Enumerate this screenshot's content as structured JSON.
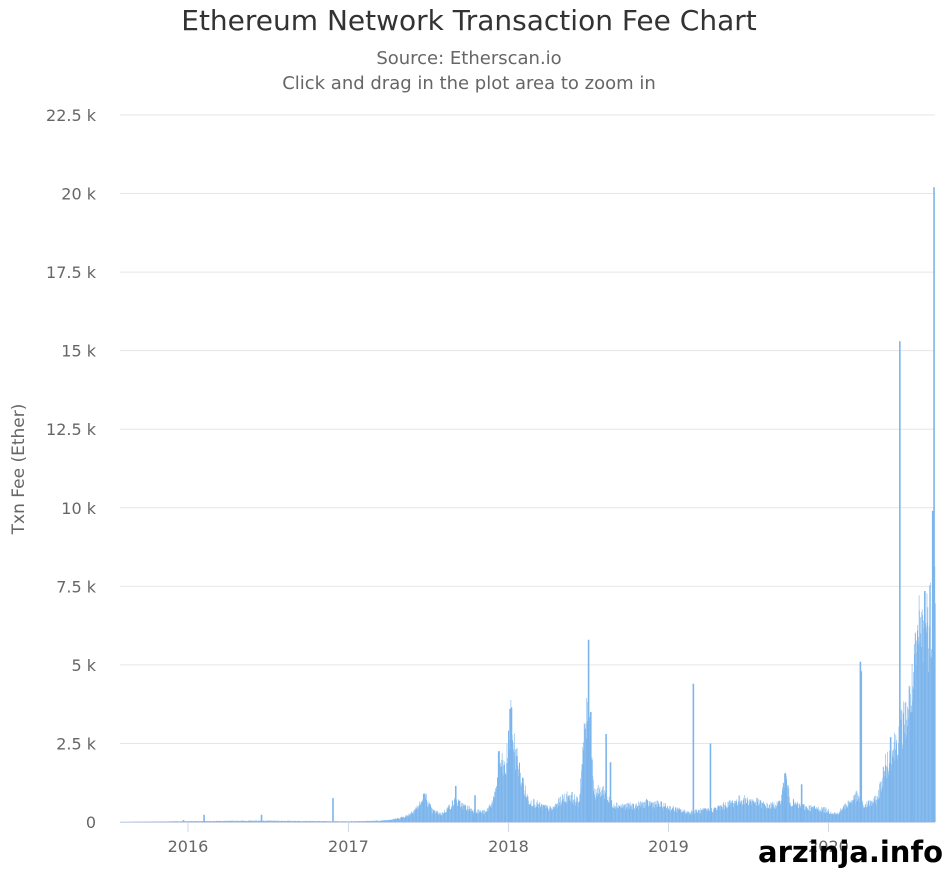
{
  "colors": {
    "bar": "#7cb5ec",
    "grid": "#e6e6e6",
    "text": "#666666",
    "title": "#333333"
  },
  "chart_data": {
    "type": "bar",
    "title": "Ethereum Network Transaction Fee Chart",
    "subtitle_lines": [
      "Source: Etherscan.io",
      "Click and drag in the plot area to zoom in"
    ],
    "xlabel": "",
    "ylabel": "Txn Fee (Ether)",
    "ylim": [
      0,
      22500
    ],
    "y_ticks": [
      {
        "value": 0,
        "label": "0"
      },
      {
        "value": 2500,
        "label": "2.5 k"
      },
      {
        "value": 5000,
        "label": "5 k"
      },
      {
        "value": 7500,
        "label": "7.5 k"
      },
      {
        "value": 10000,
        "label": "10 k"
      },
      {
        "value": 12500,
        "label": "12.5 k"
      },
      {
        "value": 15000,
        "label": "15 k"
      },
      {
        "value": 17500,
        "label": "17.5 k"
      },
      {
        "value": 20000,
        "label": "20 k"
      },
      {
        "value": 22500,
        "label": "22.5 k"
      }
    ],
    "xlim": [
      "2015-07-30",
      "2020-08-31"
    ],
    "x_ticks": [
      {
        "value": "2016-01-01",
        "label": "2016"
      },
      {
        "value": "2017-01-01",
        "label": "2017"
      },
      {
        "value": "2018-01-01",
        "label": "2018"
      },
      {
        "value": "2019-01-01",
        "label": "2019"
      },
      {
        "value": "2020-01-01",
        "label": "2020"
      }
    ],
    "grid": true,
    "legend": "none",
    "series_name": "",
    "profile": [
      [
        "2015-07-30",
        5
      ],
      [
        "2015-12-01",
        20
      ],
      [
        "2016-03-01",
        30
      ],
      [
        "2016-06-01",
        40
      ],
      [
        "2016-10-01",
        30
      ],
      [
        "2017-01-01",
        20
      ],
      [
        "2017-03-15",
        40
      ],
      [
        "2017-04-20",
        100
      ],
      [
        "2017-05-15",
        200
      ],
      [
        "2017-06-10",
        500
      ],
      [
        "2017-06-25",
        800
      ],
      [
        "2017-07-10",
        350
      ],
      [
        "2017-08-01",
        250
      ],
      [
        "2017-09-01",
        650
      ],
      [
        "2017-09-20",
        500
      ],
      [
        "2017-10-15",
        350
      ],
      [
        "2017-11-10",
        300
      ],
      [
        "2017-12-01",
        800
      ],
      [
        "2017-12-10",
        1900
      ],
      [
        "2017-12-25",
        1600
      ],
      [
        "2018-01-05",
        3200
      ],
      [
        "2018-01-15",
        2300
      ],
      [
        "2018-02-01",
        1200
      ],
      [
        "2018-02-15",
        700
      ],
      [
        "2018-03-15",
        500
      ],
      [
        "2018-04-10",
        400
      ],
      [
        "2018-05-01",
        700
      ],
      [
        "2018-05-20",
        850
      ],
      [
        "2018-06-10",
        600
      ],
      [
        "2018-06-25",
        3100
      ],
      [
        "2018-07-05",
        3300
      ],
      [
        "2018-07-15",
        900
      ],
      [
        "2018-08-05",
        1000
      ],
      [
        "2018-08-20",
        600
      ],
      [
        "2018-09-15",
        500
      ],
      [
        "2018-10-15",
        500
      ],
      [
        "2018-11-15",
        600
      ],
      [
        "2018-12-10",
        550
      ],
      [
        "2019-01-15",
        400
      ],
      [
        "2019-02-15",
        300
      ],
      [
        "2019-03-15",
        350
      ],
      [
        "2019-04-15",
        400
      ],
      [
        "2019-05-15",
        550
      ],
      [
        "2019-06-15",
        700
      ],
      [
        "2019-07-15",
        650
      ],
      [
        "2019-08-15",
        500
      ],
      [
        "2019-09-10",
        550
      ],
      [
        "2019-09-25",
        1400
      ],
      [
        "2019-10-05",
        650
      ],
      [
        "2019-10-25",
        500
      ],
      [
        "2019-11-20",
        450
      ],
      [
        "2019-12-20",
        400
      ],
      [
        "2020-01-20",
        250
      ],
      [
        "2020-02-15",
        600
      ],
      [
        "2020-03-05",
        800
      ],
      [
        "2020-03-20",
        500
      ],
      [
        "2020-04-20",
        700
      ],
      [
        "2020-05-10",
        1800
      ],
      [
        "2020-05-25",
        2200
      ],
      [
        "2020-06-10",
        2800
      ],
      [
        "2020-06-25",
        3300
      ],
      [
        "2020-07-10",
        4200
      ],
      [
        "2020-07-25",
        5900
      ],
      [
        "2020-08-10",
        6200
      ],
      [
        "2020-08-20",
        6500
      ],
      [
        "2020-08-31",
        7300
      ]
    ],
    "spikes": [
      {
        "date": "2015-12-20",
        "value": 60
      },
      {
        "date": "2016-02-05",
        "value": 230
      },
      {
        "date": "2016-06-15",
        "value": 230
      },
      {
        "date": "2016-11-25",
        "value": 760
      },
      {
        "date": "2017-06-20",
        "value": 900
      },
      {
        "date": "2017-09-01",
        "value": 1150
      },
      {
        "date": "2017-10-15",
        "value": 850
      },
      {
        "date": "2017-12-08",
        "value": 2250
      },
      {
        "date": "2018-01-03",
        "value": 3600
      },
      {
        "date": "2018-01-06",
        "value": 3650
      },
      {
        "date": "2018-02-01",
        "value": 1400
      },
      {
        "date": "2018-06-28",
        "value": 3200
      },
      {
        "date": "2018-07-01",
        "value": 5800
      },
      {
        "date": "2018-07-06",
        "value": 3500
      },
      {
        "date": "2018-08-10",
        "value": 2800
      },
      {
        "date": "2018-08-20",
        "value": 1900
      },
      {
        "date": "2019-02-25",
        "value": 4400
      },
      {
        "date": "2019-04-05",
        "value": 2500
      },
      {
        "date": "2019-09-22",
        "value": 1550
      },
      {
        "date": "2019-10-30",
        "value": 1200
      },
      {
        "date": "2020-03-12",
        "value": 5100
      },
      {
        "date": "2020-03-14",
        "value": 4800
      },
      {
        "date": "2020-05-20",
        "value": 2700
      },
      {
        "date": "2020-06-10",
        "value": 15300
      },
      {
        "date": "2020-07-08",
        "value": 3500
      },
      {
        "date": "2020-08-06",
        "value": 7350
      },
      {
        "date": "2020-08-24",
        "value": 9900
      },
      {
        "date": "2020-08-27",
        "value": 20200
      }
    ]
  },
  "watermark": "arzinja.info"
}
